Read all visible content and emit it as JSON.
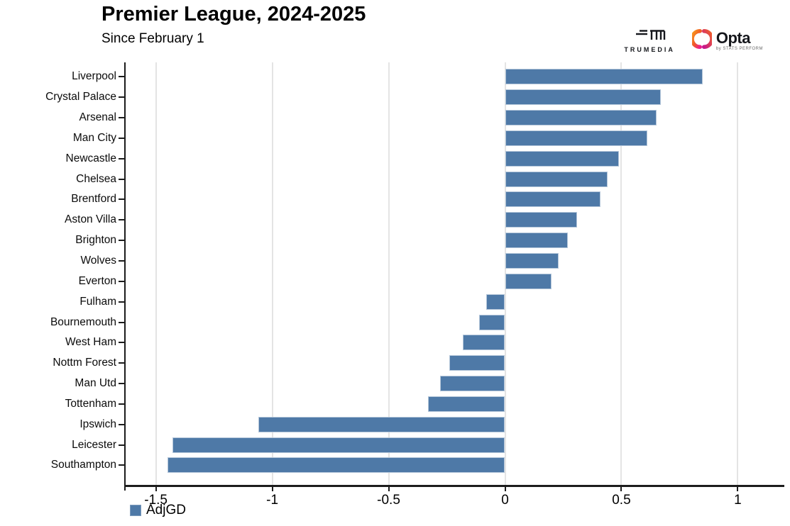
{
  "header": {
    "title": "Premier League, 2024-2025",
    "subtitle": "Since February 1"
  },
  "logos": {
    "trumedia_label": "TRUMEDIA",
    "opta_label": "Opta",
    "opta_sublabel": "by STATS PERFORM"
  },
  "legend": {
    "adjgd_label": "AdjGD"
  },
  "chart_data": {
    "type": "bar",
    "orientation": "horizontal",
    "title": "Premier League, 2024-2025",
    "subtitle": "Since February 1",
    "series_label": "AdjGD",
    "categories": [
      "Liverpool",
      "Crystal Palace",
      "Arsenal",
      "Man City",
      "Newcastle",
      "Chelsea",
      "Brentford",
      "Aston Villa",
      "Brighton",
      "Wolves",
      "Everton",
      "Fulham",
      "Bournemouth",
      "West Ham",
      "Nottm Forest",
      "Man Utd",
      "Tottenham",
      "Ipswich",
      "Leicester",
      "Southampton"
    ],
    "values": [
      0.85,
      0.67,
      0.65,
      0.61,
      0.49,
      0.44,
      0.41,
      0.31,
      0.27,
      0.23,
      0.2,
      -0.08,
      -0.11,
      -0.18,
      -0.24,
      -0.28,
      -0.33,
      -1.06,
      -1.43,
      -1.45
    ],
    "xticks": [
      -1.5,
      -1,
      -0.5,
      0,
      0.5,
      1
    ],
    "xtick_labels": [
      "-1.5",
      "-1",
      "-0.5",
      "0",
      "0.5",
      "1"
    ],
    "xlim": [
      -1.63,
      1.2
    ],
    "grid": true,
    "legend_position": "bottom-left",
    "colors": {
      "bar_fill": "#4e79a7",
      "bar_border": "#b5c7da",
      "gridline": "#e4e4e4",
      "axis": "#1c1c1c"
    }
  }
}
